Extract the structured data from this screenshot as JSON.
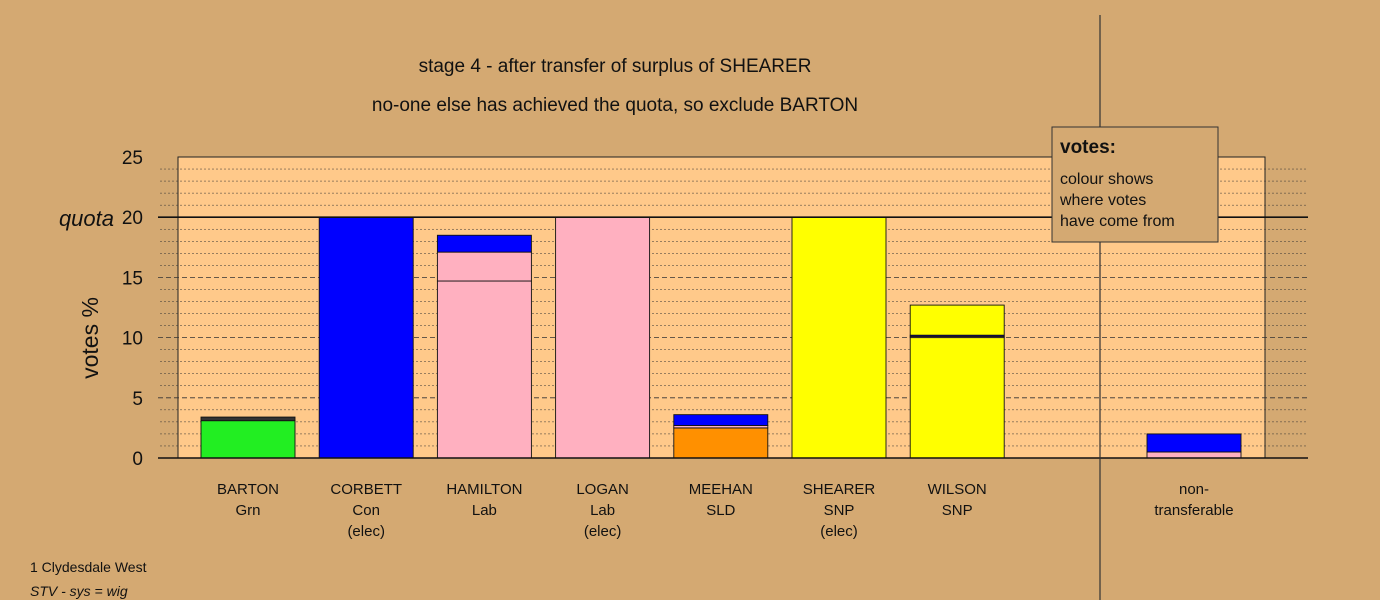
{
  "chart_data": {
    "type": "bar",
    "stacked": true,
    "title": "stage 4 - after transfer of surplus of SHEARER",
    "subtitle": "no-one else has achieved the quota, so exclude BARTON",
    "ylabel": "votes %",
    "ylim": [
      0,
      25
    ],
    "yticks": [
      0,
      5,
      10,
      15,
      20,
      25
    ],
    "quota": {
      "label": "quota",
      "value": 20
    },
    "grid": true,
    "candidates": [
      {
        "lines": [
          "BARTON",
          "Grn"
        ],
        "segments": [
          {
            "color": "#22ee22",
            "value": 3.1
          },
          {
            "color": "#333333",
            "value": 0.3
          }
        ]
      },
      {
        "lines": [
          "CORBETT",
          "Con",
          "(elec)"
        ],
        "segments": [
          {
            "color": "#0000ff",
            "value": 20.0
          }
        ]
      },
      {
        "lines": [
          "HAMILTON",
          "Lab"
        ],
        "segments": [
          {
            "color": "#ffb0c0",
            "value": 14.7
          },
          {
            "color": "#ffb0c0",
            "value": 2.4
          },
          {
            "color": "#0000ff",
            "value": 1.4
          }
        ]
      },
      {
        "lines": [
          "LOGAN",
          "Lab",
          "(elec)"
        ],
        "segments": [
          {
            "color": "#ffb0c0",
            "value": 20.0
          }
        ]
      },
      {
        "lines": [
          "MEEHAN",
          "SLD"
        ],
        "segments": [
          {
            "color": "#ff9000",
            "value": 2.5
          },
          {
            "color": "#ffb0c0",
            "value": 0.2
          },
          {
            "color": "#0000ff",
            "value": 0.9
          }
        ]
      },
      {
        "lines": [
          "SHEARER",
          "SNP",
          "(elec)"
        ],
        "segments": [
          {
            "color": "#ffff00",
            "value": 20.0
          }
        ]
      },
      {
        "lines": [
          "WILSON",
          "SNP"
        ],
        "segments": [
          {
            "color": "#ffff00",
            "value": 10.0
          },
          {
            "color": "#ffb0c0",
            "value": 0.1
          },
          {
            "color": "#0000ff",
            "value": 0.1
          },
          {
            "color": "#ffff00",
            "value": 2.5
          }
        ]
      }
    ],
    "nontransferable": {
      "lines": [
        "non-",
        "transferable"
      ],
      "segments": [
        {
          "color": "#ffb0c0",
          "value": 0.5
        },
        {
          "color": "#0000ff",
          "value": 1.5
        }
      ]
    }
  },
  "legend": {
    "title": "votes:",
    "lines": [
      "colour shows",
      "where votes",
      "have come from"
    ]
  },
  "footer": {
    "line1": "1 Clydesdale West",
    "line2": "STV - sys = wig"
  },
  "colors": {
    "background": "#d4a972",
    "plot_area": "#ffc98a"
  }
}
